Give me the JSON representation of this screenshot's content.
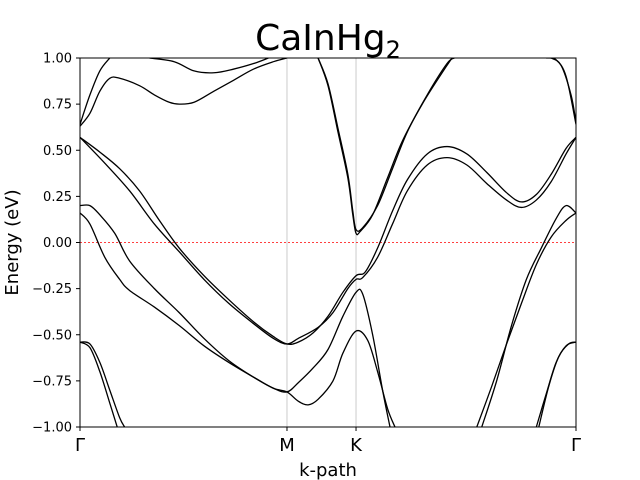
{
  "chart_data": {
    "type": "line",
    "title_main": "CaInHg",
    "title_sub": "2",
    "xlabel": "k-path",
    "ylabel": "Energy (eV)",
    "ylim": [
      -1.0,
      1.0
    ],
    "xlim": [
      0,
      1
    ],
    "yticks": [
      -1.0,
      -0.75,
      -0.5,
      -0.25,
      0.0,
      0.25,
      0.5,
      0.75,
      1.0
    ],
    "ytick_labels": [
      "−1.00",
      "−0.75",
      "−0.50",
      "−0.25",
      "0.00",
      "0.25",
      "0.50",
      "0.75",
      "1.00"
    ],
    "kpoints": [
      {
        "label": "Γ",
        "x": 0.0
      },
      {
        "label": "M",
        "x": 0.4173
      },
      {
        "label": "K",
        "x": 0.5565
      },
      {
        "label": "Γ",
        "x": 1.0
      }
    ],
    "fermi_level": 0.0,
    "colors": {
      "bands": "#000000",
      "fermi": "#ff0000",
      "kline": "#cccccc"
    },
    "series": [
      {
        "values": [
          [
            0.0,
            0.63
          ],
          [
            0.02,
            0.7
          ],
          [
            0.04,
            0.82
          ],
          [
            0.06,
            0.89
          ],
          [
            0.08,
            0.89
          ],
          [
            0.12,
            0.85
          ],
          [
            0.15,
            0.8
          ],
          [
            0.18,
            0.76
          ],
          [
            0.2,
            0.75
          ],
          [
            0.23,
            0.76
          ],
          [
            0.27,
            0.82
          ],
          [
            0.31,
            0.88
          ],
          [
            0.35,
            0.94
          ],
          [
            0.39,
            0.98
          ],
          [
            0.4173,
            1.0
          ]
        ]
      },
      {
        "values": [
          [
            0.0,
            0.64
          ],
          [
            0.02,
            0.8
          ],
          [
            0.04,
            0.93
          ],
          [
            0.06,
            1.0
          ]
        ]
      },
      {
        "values": [
          [
            0.14,
            1.0
          ],
          [
            0.19,
            0.98
          ],
          [
            0.23,
            0.93
          ],
          [
            0.27,
            0.92
          ],
          [
            0.31,
            0.94
          ],
          [
            0.35,
            0.97
          ],
          [
            0.38,
            1.0
          ]
        ]
      },
      {
        "values": [
          [
            0.48,
            1.0
          ],
          [
            0.5,
            0.85
          ],
          [
            0.52,
            0.6
          ],
          [
            0.54,
            0.35
          ],
          [
            0.55,
            0.15
          ],
          [
            0.5565,
            0.05
          ],
          [
            0.565,
            0.06
          ],
          [
            0.59,
            0.15
          ],
          [
            0.62,
            0.35
          ],
          [
            0.65,
            0.55
          ],
          [
            0.69,
            0.75
          ],
          [
            0.73,
            0.92
          ],
          [
            0.75,
            1.0
          ]
        ]
      },
      {
        "values": [
          [
            0.48,
            1.0
          ],
          [
            0.5,
            0.86
          ],
          [
            0.52,
            0.62
          ],
          [
            0.54,
            0.37
          ],
          [
            0.55,
            0.17
          ],
          [
            0.5565,
            0.07
          ],
          [
            0.57,
            0.08
          ],
          [
            0.6,
            0.2
          ],
          [
            0.63,
            0.4
          ],
          [
            0.66,
            0.6
          ],
          [
            0.7,
            0.8
          ],
          [
            0.74,
            0.97
          ],
          [
            0.755,
            1.0
          ]
        ]
      },
      {
        "values": [
          [
            0.94,
            1.0
          ],
          [
            0.96,
            0.99
          ],
          [
            0.98,
            0.9
          ],
          [
            1.0,
            0.64
          ]
        ]
      },
      {
        "values": [
          [
            0.95,
            1.0
          ],
          [
            0.97,
            0.96
          ],
          [
            0.99,
            0.8
          ],
          [
            1.0,
            0.65
          ]
        ]
      },
      {
        "values": [
          [
            0.0,
            0.57
          ],
          [
            0.05,
            0.43
          ],
          [
            0.1,
            0.28
          ],
          [
            0.15,
            0.1
          ],
          [
            0.2,
            -0.05
          ],
          [
            0.25,
            -0.2
          ],
          [
            0.3,
            -0.33
          ],
          [
            0.35,
            -0.44
          ],
          [
            0.39,
            -0.52
          ],
          [
            0.4173,
            -0.55
          ],
          [
            0.44,
            -0.52
          ],
          [
            0.48,
            -0.46
          ],
          [
            0.51,
            -0.38
          ],
          [
            0.54,
            -0.25
          ],
          [
            0.5565,
            -0.2
          ],
          [
            0.57,
            -0.19
          ],
          [
            0.6,
            -0.08
          ],
          [
            0.63,
            0.1
          ],
          [
            0.66,
            0.28
          ],
          [
            0.7,
            0.42
          ],
          [
            0.74,
            0.46
          ],
          [
            0.78,
            0.42
          ],
          [
            0.82,
            0.32
          ],
          [
            0.86,
            0.23
          ],
          [
            0.89,
            0.19
          ],
          [
            0.92,
            0.23
          ],
          [
            0.95,
            0.33
          ],
          [
            0.98,
            0.48
          ],
          [
            1.0,
            0.57
          ]
        ]
      },
      {
        "values": [
          [
            0.0,
            0.57
          ],
          [
            0.04,
            0.49
          ],
          [
            0.08,
            0.4
          ],
          [
            0.12,
            0.28
          ],
          [
            0.16,
            0.12
          ],
          [
            0.2,
            -0.03
          ],
          [
            0.25,
            -0.18
          ],
          [
            0.3,
            -0.31
          ],
          [
            0.35,
            -0.43
          ],
          [
            0.39,
            -0.51
          ],
          [
            0.4173,
            -0.55
          ],
          [
            0.44,
            -0.54
          ],
          [
            0.47,
            -0.49
          ],
          [
            0.5,
            -0.4
          ],
          [
            0.53,
            -0.27
          ],
          [
            0.5565,
            -0.18
          ],
          [
            0.575,
            -0.16
          ],
          [
            0.6,
            -0.03
          ],
          [
            0.63,
            0.17
          ],
          [
            0.66,
            0.34
          ],
          [
            0.7,
            0.48
          ],
          [
            0.74,
            0.52
          ],
          [
            0.78,
            0.48
          ],
          [
            0.82,
            0.38
          ],
          [
            0.86,
            0.27
          ],
          [
            0.89,
            0.22
          ],
          [
            0.92,
            0.26
          ],
          [
            0.95,
            0.37
          ],
          [
            0.98,
            0.51
          ],
          [
            1.0,
            0.57
          ]
        ]
      },
      {
        "values": [
          [
            0.0,
            0.16
          ],
          [
            0.02,
            0.1
          ],
          [
            0.05,
            -0.08
          ],
          [
            0.08,
            -0.2
          ],
          [
            0.1,
            -0.26
          ],
          [
            0.15,
            -0.35
          ],
          [
            0.2,
            -0.45
          ],
          [
            0.25,
            -0.56
          ],
          [
            0.3,
            -0.65
          ],
          [
            0.35,
            -0.73
          ],
          [
            0.39,
            -0.79
          ],
          [
            0.4173,
            -0.81
          ],
          [
            0.44,
            -0.86
          ],
          [
            0.46,
            -0.88
          ],
          [
            0.48,
            -0.85
          ],
          [
            0.51,
            -0.75
          ],
          [
            0.53,
            -0.6
          ],
          [
            0.5565,
            -0.48
          ],
          [
            0.58,
            -0.53
          ],
          [
            0.6,
            -0.7
          ],
          [
            0.62,
            -0.9
          ],
          [
            0.635,
            -1.0
          ]
        ]
      },
      {
        "values": [
          [
            0.0,
            0.2
          ],
          [
            0.02,
            0.2
          ],
          [
            0.04,
            0.15
          ],
          [
            0.07,
            0.05
          ],
          [
            0.1,
            -0.1
          ],
          [
            0.15,
            -0.25
          ],
          [
            0.2,
            -0.38
          ],
          [
            0.25,
            -0.52
          ],
          [
            0.3,
            -0.64
          ],
          [
            0.35,
            -0.73
          ],
          [
            0.39,
            -0.79
          ],
          [
            0.4173,
            -0.81
          ],
          [
            0.44,
            -0.76
          ],
          [
            0.47,
            -0.68
          ],
          [
            0.5,
            -0.58
          ],
          [
            0.53,
            -0.4
          ],
          [
            0.5565,
            -0.27
          ],
          [
            0.57,
            -0.28
          ],
          [
            0.59,
            -0.5
          ],
          [
            0.61,
            -0.8
          ],
          [
            0.625,
            -1.0
          ]
        ]
      },
      {
        "values": [
          [
            0.81,
            -1.0
          ],
          [
            0.84,
            -0.75
          ],
          [
            0.87,
            -0.45
          ],
          [
            0.9,
            -0.2
          ],
          [
            0.93,
            -0.03
          ],
          [
            0.96,
            0.13
          ],
          [
            0.98,
            0.2
          ],
          [
            1.0,
            0.16
          ]
        ]
      },
      {
        "values": [
          [
            0.8,
            -1.0
          ],
          [
            0.83,
            -0.78
          ],
          [
            0.86,
            -0.55
          ],
          [
            0.89,
            -0.33
          ],
          [
            0.92,
            -0.12
          ],
          [
            0.95,
            0.03
          ],
          [
            0.98,
            0.12
          ],
          [
            1.0,
            0.16
          ]
        ]
      },
      {
        "values": [
          [
            0.0,
            -0.54
          ],
          [
            0.02,
            -0.55
          ],
          [
            0.04,
            -0.65
          ],
          [
            0.06,
            -0.8
          ],
          [
            0.08,
            -0.95
          ],
          [
            0.09,
            -1.0
          ]
        ]
      },
      {
        "values": [
          [
            0.0,
            -0.54
          ],
          [
            0.02,
            -0.57
          ],
          [
            0.04,
            -0.7
          ],
          [
            0.06,
            -0.87
          ],
          [
            0.075,
            -1.0
          ]
        ]
      },
      {
        "values": [
          [
            0.92,
            -1.0
          ],
          [
            0.94,
            -0.82
          ],
          [
            0.96,
            -0.65
          ],
          [
            0.98,
            -0.56
          ],
          [
            1.0,
            -0.54
          ]
        ]
      },
      {
        "values": [
          [
            0.925,
            -1.0
          ],
          [
            0.945,
            -0.78
          ],
          [
            0.965,
            -0.62
          ],
          [
            0.985,
            -0.55
          ],
          [
            1.0,
            -0.54
          ]
        ]
      }
    ]
  }
}
